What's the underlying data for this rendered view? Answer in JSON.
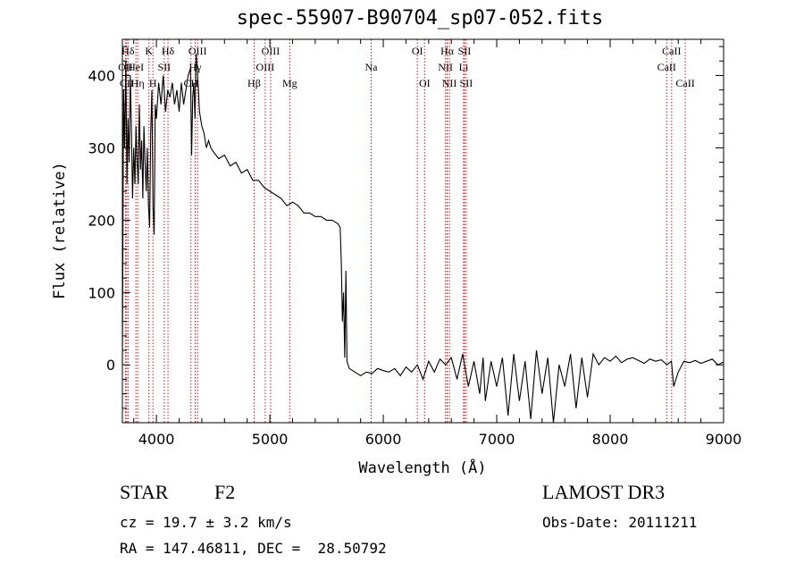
{
  "chart_data": {
    "type": "line",
    "title": "spec-55907-B90704_sp07-052.fits",
    "xlabel": "Wavelength (Å)",
    "ylabel": "Flux (relative)",
    "xlim": [
      3700,
      9000
    ],
    "ylim": [
      -80,
      450
    ],
    "x_ticks": [
      4000,
      5000,
      6000,
      7000,
      8000,
      9000
    ],
    "y_ticks": [
      0,
      100,
      200,
      300,
      400
    ],
    "grid": false,
    "line_color": "#000000",
    "marker_color": "#cc0000",
    "series": [
      {
        "x": [
          3700,
          3710,
          3720,
          3730,
          3740,
          3750,
          3760,
          3770,
          3780,
          3790,
          3800,
          3810,
          3820,
          3830,
          3840,
          3850,
          3860,
          3870,
          3880,
          3890,
          3900,
          3910,
          3920,
          3930,
          3940,
          3950,
          3960,
          3970,
          3980,
          3990,
          4000,
          4020,
          4040,
          4060,
          4080,
          4100,
          4120,
          4140,
          4160,
          4180,
          4200,
          4220,
          4240,
          4260,
          4280,
          4300,
          4310,
          4320,
          4330,
          4340,
          4350,
          4360,
          4370,
          4380,
          4400,
          4420,
          4440,
          4460,
          4480,
          4500,
          4550,
          4600,
          4650,
          4700,
          4750,
          4800,
          4850,
          4900,
          4950,
          5000,
          5050,
          5100,
          5150,
          5200,
          5250,
          5300,
          5350,
          5400,
          5450,
          5500,
          5550,
          5600,
          5620,
          5630,
          5640,
          5650,
          5660,
          5670,
          5680,
          5700,
          5750,
          5800,
          5850,
          5900,
          5950,
          6000,
          6050,
          6100,
          6150,
          6200,
          6250,
          6300,
          6350,
          6400,
          6450,
          6500,
          6550,
          6600,
          6650,
          6700,
          6750,
          6800,
          6850,
          6880,
          6900,
          6950,
          7000,
          7050,
          7100,
          7150,
          7200,
          7250,
          7300,
          7350,
          7400,
          7450,
          7500,
          7550,
          7600,
          7650,
          7700,
          7750,
          7800,
          7850,
          7900,
          7950,
          8000,
          8050,
          8100,
          8150,
          8200,
          8250,
          8300,
          8350,
          8400,
          8450,
          8500,
          8540,
          8560,
          8600,
          8650,
          8700,
          8750,
          8800,
          8850,
          8900,
          8950,
          9000
        ],
        "y": [
          0,
          380,
          300,
          420,
          250,
          340,
          280,
          400,
          320,
          230,
          300,
          250,
          330,
          280,
          250,
          360,
          270,
          310,
          230,
          330,
          280,
          240,
          300,
          220,
          190,
          320,
          380,
          220,
          180,
          360,
          340,
          390,
          360,
          400,
          350,
          380,
          370,
          390,
          360,
          380,
          350,
          390,
          360,
          380,
          400,
          410,
          290,
          370,
          390,
          340,
          430,
          410,
          380,
          350,
          330,
          320,
          300,
          310,
          300,
          295,
          285,
          290,
          275,
          280,
          265,
          270,
          255,
          255,
          245,
          240,
          235,
          230,
          220,
          225,
          220,
          210,
          210,
          205,
          205,
          200,
          200,
          195,
          190,
          140,
          60,
          100,
          10,
          130,
          5,
          -5,
          -10,
          -15,
          -10,
          -12,
          -5,
          -8,
          -10,
          -5,
          -15,
          -3,
          -10,
          0,
          -20,
          5,
          -10,
          8,
          0,
          10,
          -20,
          15,
          -30,
          5,
          -40,
          10,
          -50,
          5,
          -30,
          10,
          -70,
          15,
          -50,
          5,
          -75,
          20,
          -40,
          10,
          -80,
          0,
          -30,
          15,
          -60,
          10,
          -45,
          15,
          0,
          10,
          5,
          12,
          3,
          8,
          10,
          6,
          2,
          8,
          5,
          7,
          0,
          5,
          -30,
          -10,
          5,
          3,
          6,
          2,
          5,
          8,
          0,
          4
        ]
      }
    ],
    "line_markers": [
      {
        "label": "Hδ",
        "x": 3750,
        "row": 0
      },
      {
        "label": "OII",
        "x": 3727,
        "row": 1
      },
      {
        "label": "CII",
        "x": 3738,
        "row": 2
      },
      {
        "label": "HeI",
        "x": 3819,
        "row": 1
      },
      {
        "label": "Hη",
        "x": 3835,
        "row": 2
      },
      {
        "label": "K",
        "x": 3934,
        "row": 0
      },
      {
        "label": "SII",
        "x": 4069,
        "row": 1
      },
      {
        "label": "H",
        "x": 3969,
        "row": 2
      },
      {
        "label": "Hδ",
        "x": 4102,
        "row": 0
      },
      {
        "label": "OIII",
        "x": 4363,
        "row": 0
      },
      {
        "label": "Hγ",
        "x": 4341,
        "row": 1
      },
      {
        "label": "CH",
        "x": 4305,
        "row": 2
      },
      {
        "label": "OIII",
        "x": 5007,
        "row": 0
      },
      {
        "label": "OIII",
        "x": 4959,
        "row": 1
      },
      {
        "label": "Hβ",
        "x": 4861,
        "row": 2
      },
      {
        "label": "Mg",
        "x": 5175,
        "row": 2
      },
      {
        "label": "Na",
        "x": 5893,
        "row": 1
      },
      {
        "label": "OI",
        "x": 6300,
        "row": 0
      },
      {
        "label": "OI",
        "x": 6364,
        "row": 2
      },
      {
        "label": "Hα",
        "x": 6563,
        "row": 0
      },
      {
        "label": "SII",
        "x": 6716,
        "row": 0
      },
      {
        "label": "NII",
        "x": 6548,
        "row": 1
      },
      {
        "label": "Li",
        "x": 6708,
        "row": 1
      },
      {
        "label": "NII",
        "x": 6583,
        "row": 2
      },
      {
        "label": "SII",
        "x": 6731,
        "row": 2
      },
      {
        "label": "CaII",
        "x": 8542,
        "row": 0
      },
      {
        "label": "CaII",
        "x": 8498,
        "row": 1
      },
      {
        "label": "CaII",
        "x": 8662,
        "row": 2
      }
    ]
  },
  "info": {
    "object_type": "STAR",
    "subclass": "F2",
    "survey": "LAMOST DR3",
    "cz": "cz = 19.7 ± 3.2 km/s",
    "obs_date": "Obs-Date: 20111211",
    "radec": "RA = 147.46811, DEC =  28.50792"
  }
}
